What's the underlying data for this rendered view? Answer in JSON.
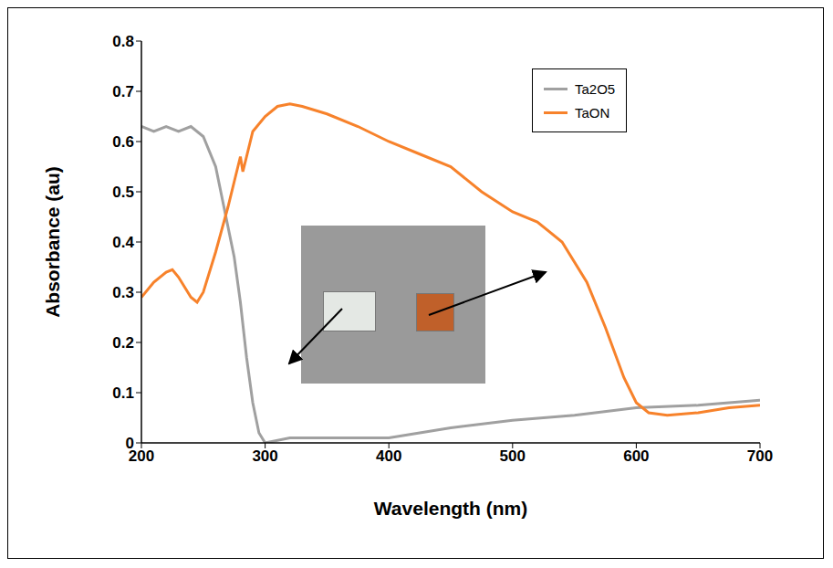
{
  "chart_data": {
    "type": "line",
    "x_label": "Wavelength (nm)",
    "y_label": "Absorbance (au)",
    "xlim": [
      200,
      700
    ],
    "xticks": [
      200,
      300,
      400,
      500,
      600,
      700
    ],
    "ylim": [
      0,
      0.8
    ],
    "yticks": [
      0,
      0.1,
      0.2,
      0.3,
      0.4,
      0.5,
      0.6,
      0.7,
      0.8
    ],
    "legend": "upper right",
    "grid": false,
    "series": [
      {
        "name": "Ta2O5",
        "color": "#a0a0a0",
        "x": [
          200,
          210,
          220,
          230,
          240,
          250,
          260,
          270,
          275,
          280,
          285,
          290,
          295,
          300,
          320,
          350,
          400,
          450,
          500,
          550,
          600,
          650,
          700
        ],
        "values": [
          0.63,
          0.62,
          0.63,
          0.62,
          0.63,
          0.61,
          0.55,
          0.43,
          0.37,
          0.28,
          0.17,
          0.08,
          0.02,
          0.0,
          0.01,
          0.01,
          0.01,
          0.03,
          0.045,
          0.055,
          0.07,
          0.075,
          0.085
        ]
      },
      {
        "name": "TaON",
        "color": "#f7822b",
        "x": [
          200,
          210,
          220,
          225,
          230,
          240,
          245,
          250,
          260,
          270,
          275,
          280,
          282,
          290,
          300,
          310,
          320,
          330,
          350,
          375,
          400,
          425,
          450,
          475,
          500,
          520,
          540,
          560,
          575,
          590,
          600,
          610,
          625,
          650,
          675,
          700
        ],
        "values": [
          0.29,
          0.32,
          0.34,
          0.345,
          0.33,
          0.29,
          0.28,
          0.3,
          0.38,
          0.47,
          0.52,
          0.57,
          0.54,
          0.62,
          0.65,
          0.67,
          0.675,
          0.67,
          0.655,
          0.63,
          0.6,
          0.575,
          0.55,
          0.5,
          0.46,
          0.44,
          0.4,
          0.32,
          0.23,
          0.13,
          0.08,
          0.06,
          0.055,
          0.06,
          0.07,
          0.075
        ]
      }
    ]
  }
}
